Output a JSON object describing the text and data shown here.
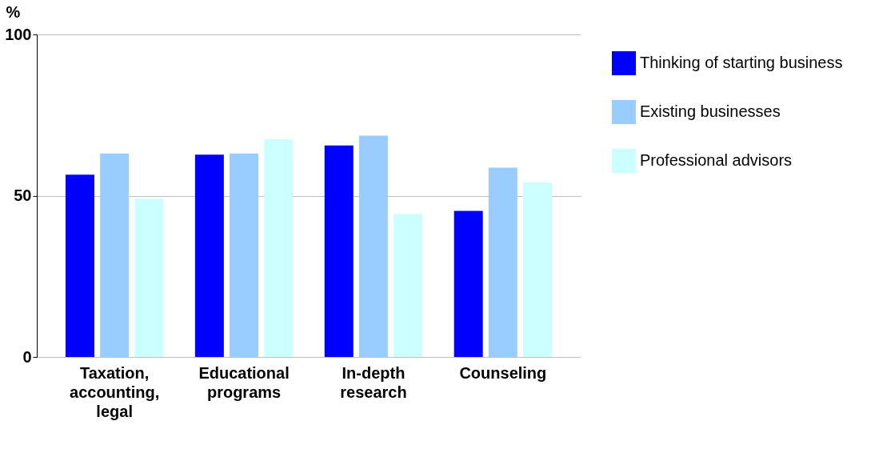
{
  "chart_data": {
    "type": "bar",
    "ylabel": "%",
    "categories": [
      "Taxation, accounting, legal",
      "Educational programs",
      "In-depth research",
      "Counseling"
    ],
    "series": [
      {
        "name": "Thinking of starting business",
        "color": "#0000ff",
        "values": [
          56.5,
          62.7,
          65.6,
          45.3
        ]
      },
      {
        "name": "Existing businesses",
        "color": "#99ccff",
        "values": [
          63.1,
          63.1,
          68.6,
          58.7
        ]
      },
      {
        "name": "Professional advisors",
        "color": "#ccffff",
        "values": [
          49.1,
          67.5,
          44.3,
          54.1
        ]
      }
    ],
    "ylim": [
      0,
      100
    ],
    "yticks": [
      0,
      50,
      100
    ],
    "grid": "y",
    "legend": "right"
  }
}
